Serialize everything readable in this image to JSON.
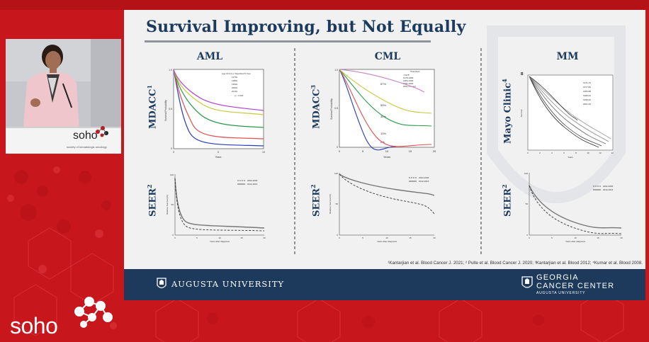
{
  "slide": {
    "title": "Survival Improving, but Not Equally",
    "columns": [
      {
        "head": "AML",
        "top_ylabel": "MDACC",
        "top_sup": "1",
        "bottom_ylabel": "SEER",
        "bottom_sup": "2"
      },
      {
        "head": "CML",
        "top_ylabel": "MDACC",
        "top_sup": "3",
        "bottom_ylabel": "SEER",
        "bottom_sup": "2"
      },
      {
        "head": "MM",
        "top_ylabel": "Mayo Clinic",
        "top_sup": "4",
        "bottom_ylabel": "SEER",
        "bottom_sup": "2"
      }
    ],
    "footnote": "¹Kantarjian et al. Blood Cancer J. 2021; ² Pulte et al. Blood Cancer J. 2020; ³Kantarjian et al. Blood 2012; ⁴Kumar et al. Blood 2008.",
    "footer": {
      "left_org": "AUGUSTA UNIVERSITY",
      "right_line1": "GEORGIA",
      "right_line2": "CANCER CENTER",
      "right_line3": "AUGUSTA UNIVERSITY"
    }
  },
  "branding": {
    "corner_logo": "soho",
    "podium_logo": "soho",
    "podium_tagline": "society of hematologic oncology"
  },
  "chart_text": {
    "aml_top": {
      "ylabel": "Survival Probability",
      "xlabel": "Years",
      "legend_header": "Age 60 & 0 p  Total  Died  5 Year",
      "legend": [
        "1970s",
        "1980s",
        "1990s",
        "2000s",
        "2010s"
      ],
      "pval": "p < 0.001",
      "yticks": [
        "1.0",
        "0.9",
        "0.8",
        "0.7",
        "0.6",
        "0.5",
        "0.4",
        "0.3",
        "0.2",
        "0.1",
        "0"
      ],
      "xticks": [
        "0",
        "1",
        "2",
        "3",
        "4",
        "5",
        "6",
        "7",
        "8",
        "9",
        "10"
      ]
    },
    "cml_top": {
      "ylabel": "Survival Probability",
      "xlabel": "Years",
      "legend_header": "Total  Died",
      "legend": [
        "<1978",
        "1978-1983",
        "1984-1990",
        "1991-2000",
        "2001-Present"
      ],
      "labels": [
        "87%",
        "55%",
        "39%",
        "13%",
        "2%"
      ],
      "yticks": [
        "1.0",
        "0.9",
        "0.8",
        "0.7",
        "0.6",
        "0.5",
        "0.4",
        "0.3",
        "0.2",
        "0.1",
        "0"
      ],
      "xticks": [
        "0",
        "5",
        "10",
        "15",
        "20"
      ]
    },
    "mm_top": {
      "panel": "B",
      "ylabel": "Survival",
      "xlabel": "Years",
      "legend": [
        "1971-76",
        "1977-82",
        "1983-88",
        "1989-94",
        "1995-00",
        "2001-06"
      ],
      "xticks": [
        "0",
        "2",
        "4",
        "6",
        "8",
        "10",
        "12",
        "14"
      ]
    },
    "seer": {
      "ylabel": "Relative Survival (%)",
      "xlabel": "Years after diagnosis",
      "legend": [
        "2002-2006",
        "2012-2016"
      ],
      "yticks": [
        "100",
        "90",
        "80",
        "70",
        "60",
        "50",
        "40",
        "30",
        "20",
        "10",
        "0"
      ],
      "xticks": [
        "0",
        "5",
        "10",
        "15",
        "20"
      ]
    }
  }
}
